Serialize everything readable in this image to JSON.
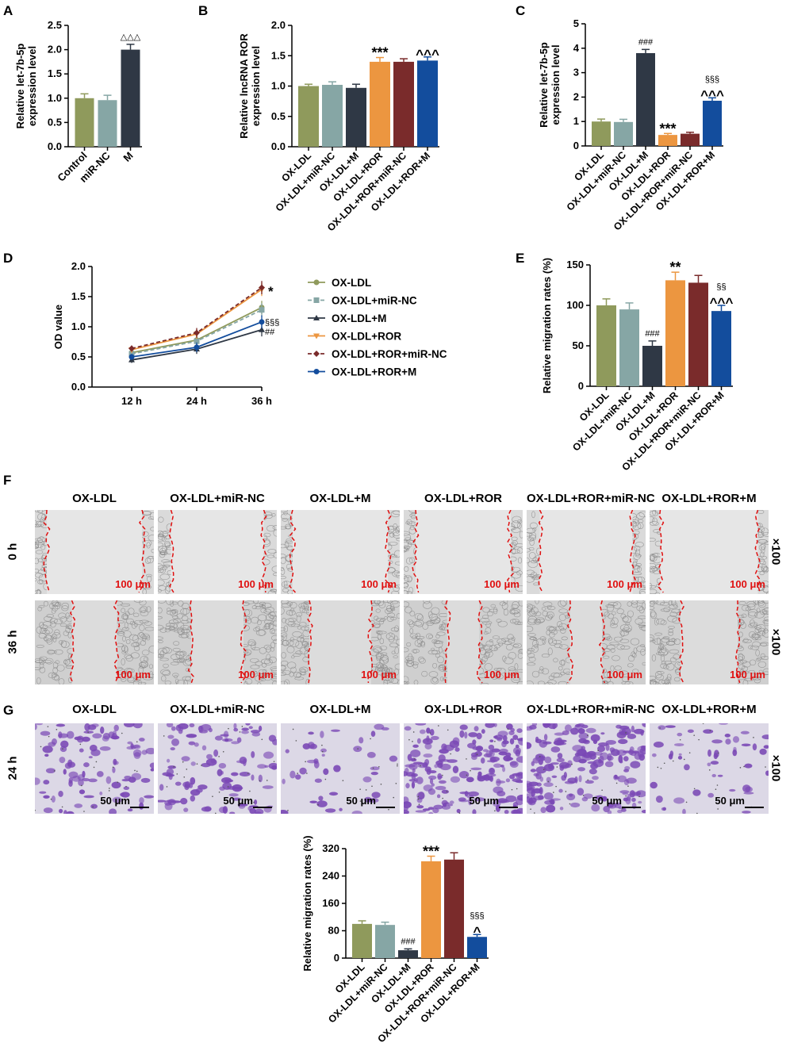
{
  "colors": {
    "c1": "#8f9a5c",
    "c2": "#86a6a5",
    "c3": "#2f3845",
    "c4": "#ec9640",
    "c5": "#7a2b2b",
    "c6": "#134d9d",
    "scale_red": "#e01010",
    "crystal": "#7a48b5"
  },
  "panel_letters": [
    "A",
    "B",
    "C",
    "D",
    "E",
    "F",
    "G"
  ],
  "chart_data": [
    {
      "id": "A",
      "type": "bar",
      "ylabel": "Relative let-7b-5p expression level",
      "ylim": [
        0,
        2.5
      ],
      "yticks": [
        "0.0",
        "0.5",
        "1.0",
        "1.5",
        "2.0",
        "2.5"
      ],
      "categories": [
        "Control",
        "miR-NC",
        "M"
      ],
      "values": [
        1.0,
        0.96,
        2.0
      ],
      "errors": [
        0.09,
        0.1,
        0.11
      ],
      "annotations": [
        "",
        "",
        "△△△"
      ]
    },
    {
      "id": "B",
      "type": "bar",
      "ylabel": "Relative lncRNA ROR expression level",
      "ylim": [
        0,
        2.0
      ],
      "yticks": [
        "0.0",
        "0.5",
        "1.0",
        "1.5",
        "2.0"
      ],
      "categories": [
        "OX-LDL",
        "OX-LDL+miR-NC",
        "OX-LDL+M",
        "OX-LDL+ROR",
        "OX-LDL+ROR+miR-NC",
        "OX-LDL+ROR+M"
      ],
      "values": [
        1.0,
        1.02,
        0.97,
        1.4,
        1.4,
        1.42
      ],
      "errors": [
        0.03,
        0.05,
        0.06,
        0.07,
        0.05,
        0.06
      ],
      "annotations": [
        "",
        "",
        "",
        "***",
        "",
        "^^^"
      ]
    },
    {
      "id": "C",
      "type": "bar",
      "ylabel": "Relative let-7b-5p expression level",
      "ylim": [
        0,
        5
      ],
      "yticks": [
        "0",
        "1",
        "2",
        "3",
        "4",
        "5"
      ],
      "categories": [
        "OX-LDL",
        "OX-LDL+miR-NC",
        "OX-LDL+M",
        "OX-LDL+ROR",
        "OX-LDL+ROR+miR-NC",
        "OX-LDL+ROR+M"
      ],
      "values": [
        1.0,
        0.98,
        3.8,
        0.45,
        0.5,
        1.85
      ],
      "errors": [
        0.1,
        0.11,
        0.15,
        0.06,
        0.06,
        0.12
      ],
      "annotations": [
        "",
        "",
        "###",
        "***",
        "",
        "§§§\n^^^"
      ]
    },
    {
      "id": "D",
      "type": "line",
      "ylabel": "OD value",
      "ylim": [
        0,
        2.0
      ],
      "yticks": [
        "0.0",
        "0.5",
        "1.0",
        "1.5",
        "2.0"
      ],
      "x": [
        "12 h",
        "24 h",
        "36 h"
      ],
      "series": [
        {
          "name": "OX-LDL",
          "values": [
            0.57,
            0.78,
            1.32
          ],
          "dash": false,
          "marker": "circle"
        },
        {
          "name": "OX-LDL+miR-NC",
          "values": [
            0.55,
            0.76,
            1.28
          ],
          "dash": true,
          "marker": "square"
        },
        {
          "name": "OX-LDL+M",
          "values": [
            0.45,
            0.63,
            0.95
          ],
          "dash": false,
          "marker": "triangle"
        },
        {
          "name": "OX-LDL+ROR",
          "values": [
            0.62,
            0.88,
            1.62
          ],
          "dash": false,
          "marker": "inv-triangle"
        },
        {
          "name": "OX-LDL+ROR+miR-NC",
          "values": [
            0.64,
            0.9,
            1.65
          ],
          "dash": true,
          "marker": "diamond"
        },
        {
          "name": "OX-LDL+ROR+M",
          "values": [
            0.5,
            0.66,
            1.08
          ],
          "dash": false,
          "marker": "circle"
        }
      ],
      "annotations": [
        "*",
        "§§§",
        "##"
      ]
    },
    {
      "id": "E",
      "type": "bar",
      "ylabel": "Relative migration rates (%)",
      "ylim": [
        0,
        150
      ],
      "yticks": [
        "0",
        "50",
        "100",
        "150"
      ],
      "categories": [
        "OX-LDL",
        "OX-LDL+miR-NC",
        "OX-LDL+M",
        "OX-LDL+ROR",
        "OX-LDL+ROR+miR-NC",
        "OX-LDL+ROR+M"
      ],
      "values": [
        100,
        95,
        50,
        131,
        128,
        93
      ],
      "errors": [
        8,
        8,
        6,
        10,
        9,
        7
      ],
      "annotations": [
        "",
        "",
        "###",
        "**",
        "",
        "§§\n^^^"
      ]
    },
    {
      "id": "G2",
      "type": "bar",
      "ylabel": "Relative migration rates (%)",
      "ylim": [
        0,
        320
      ],
      "yticks": [
        "0",
        "80",
        "160",
        "240",
        "320"
      ],
      "categories": [
        "OX-LDL",
        "OX-LDL+miR-NC",
        "OX-LDL+M",
        "OX-LDL+ROR",
        "OX-LDL+ROR+miR-NC",
        "OX-LDL+ROR+M"
      ],
      "values": [
        100,
        97,
        23,
        283,
        288,
        62
      ],
      "errors": [
        9,
        8,
        4,
        15,
        20,
        7
      ],
      "annotations": [
        "",
        "",
        "###",
        "***",
        "",
        "§§§\n^"
      ]
    }
  ],
  "panel_f": {
    "column_labels": [
      "OX-LDL",
      "OX-LDL+miR-NC",
      "OX-LDL+M",
      "OX-LDL+ROR",
      "OX-LDL+ROR+miR-NC",
      "OX-LDL+ROR+M"
    ],
    "row_labels": [
      "0 h",
      "36 h"
    ],
    "scale_bar": "100 μm",
    "magnification": "×100",
    "gap_fraction": {
      "0 h": [
        0.8,
        0.78,
        0.8,
        0.8,
        0.78,
        0.82
      ],
      "36 h": [
        0.38,
        0.44,
        0.52,
        0.27,
        0.27,
        0.48
      ]
    }
  },
  "panel_g": {
    "column_labels": [
      "OX-LDL",
      "OX-LDL+miR-NC",
      "OX-LDL+M",
      "OX-LDL+ROR",
      "OX-LDL+ROR+miR-NC",
      "OX-LDL+ROR+M"
    ],
    "row_label": "24 h",
    "scale_bar": "50 μm",
    "magnification": "×100",
    "cell_density": [
      0.45,
      0.5,
      0.18,
      0.85,
      0.9,
      0.22
    ]
  }
}
